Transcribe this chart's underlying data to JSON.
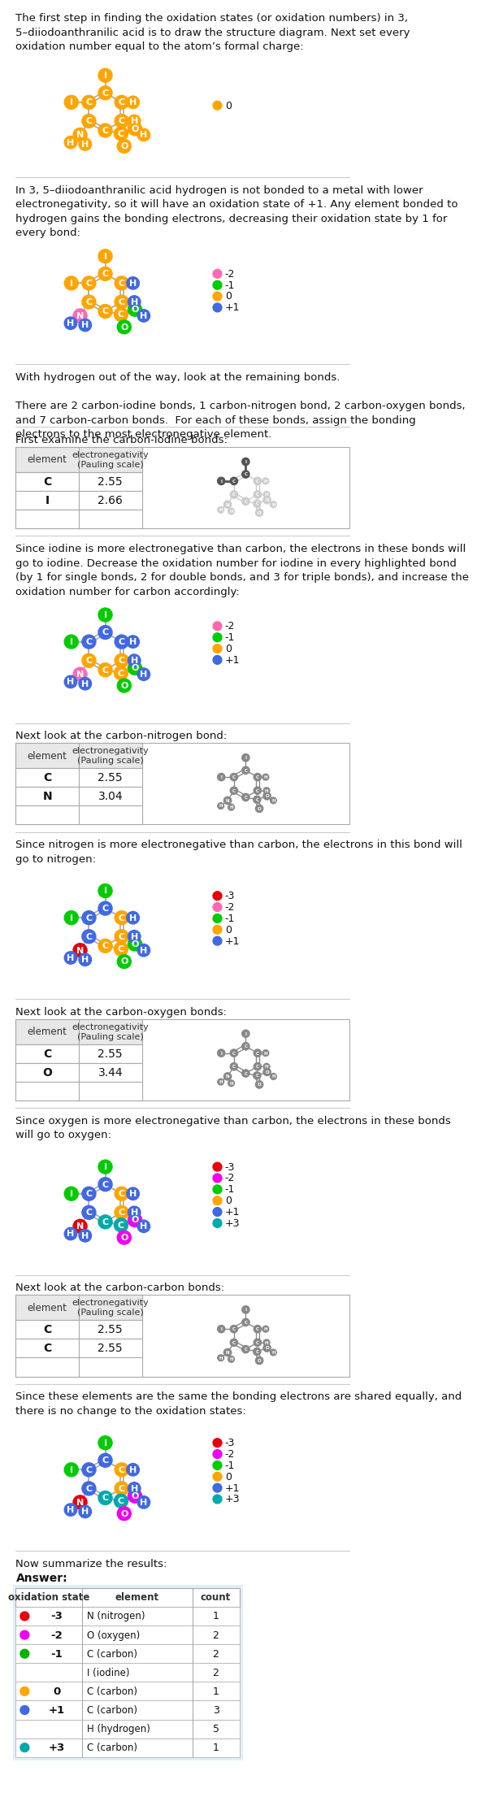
{
  "title_text": "The first step in finding the oxidation states (or oxidation numbers) in 3,\n5–diiodoanthranilic acid is to draw the structure diagram. Next set every\noxidation number equal to the atom’s formal charge:",
  "section_texts": [
    "In 3, 5–diiodoanthranilic acid hydrogen is not bonded to a metal with lower\nelectronegativity, so it will have an oxidation state of +1. Any element bonded to\nhydrogen gains the bonding electrons, decreasing their oxidation state by 1 for\nevery bond:",
    "With hydrogen out of the way, look at the remaining bonds.\n\nThere are 2 carbon-iodine bonds, 1 carbon-nitrogen bond, 2 carbon-oxygen bonds,\nand 7 carbon-carbon bonds.  For each of these bonds, assign the bonding\nelectrons to the most electronegative element.",
    "First examine the carbon-iodine bonds:",
    "Since iodine is more electronegative than carbon, the electrons in these bonds will\ngo to iodine. Decrease the oxidation number for iodine in every highlighted bond\n(by 1 for single bonds, 2 for double bonds, and 3 for triple bonds), and increase the\noxidation number for carbon accordingly:",
    "Next look at the carbon-nitrogen bond:",
    "Since nitrogen is more electronegative than carbon, the electrons in this bond will\ngo to nitrogen:",
    "Next look at the carbon-oxygen bonds:",
    "Since oxygen is more electronegative than carbon, the electrons in these bonds\nwill go to oxygen:",
    "Next look at the carbon-carbon bonds:",
    "Since these elements are the same the bonding electrons are shared equally, and\nthere is no change to the oxidation states:",
    "Now summarize the results:"
  ],
  "answer_label": "Answer:",
  "table_rows": [
    {
      "dot_color": "#e8000d",
      "ox": "-3",
      "element": "N (nitrogen)",
      "count": "1"
    },
    {
      "dot_color": "#f000f0",
      "ox": "-2",
      "element": "O (oxygen)",
      "count": "2"
    },
    {
      "dot_color": "#00b300",
      "ox": "-1",
      "element": "C (carbon)",
      "count": "2"
    },
    {
      "dot_color": null,
      "ox": "",
      "element": "I (iodine)",
      "count": "2"
    },
    {
      "dot_color": "#ffa500",
      "ox": "0",
      "element": "C (carbon)",
      "count": "1"
    },
    {
      "dot_color": "#4169e1",
      "ox": "+1",
      "element": "C (carbon)",
      "count": "3"
    },
    {
      "dot_color": null,
      "ox": "",
      "element": "H (hydrogen)",
      "count": "5"
    },
    {
      "dot_color": "#00aaaa",
      "ox": "+3",
      "element": "C (carbon)",
      "count": "1"
    }
  ],
  "en_tables": [
    [
      [
        "C",
        "2.55"
      ],
      [
        "I",
        "2.66"
      ]
    ],
    [
      [
        "C",
        "2.55"
      ],
      [
        "N",
        "3.04"
      ]
    ],
    [
      [
        "C",
        "2.55"
      ],
      [
        "O",
        "3.44"
      ]
    ],
    [
      [
        "C",
        "2.55"
      ],
      [
        "C",
        "2.55"
      ]
    ]
  ],
  "colors": {
    "orange": "#FFA500",
    "blue": "#4169E1",
    "pink": "#FF69B4",
    "green": "#00CC00",
    "red": "#e8000d",
    "magenta": "#f000f0",
    "teal": "#00aaaa",
    "gray_atom": "#888888",
    "bond_gray": "#999999",
    "bg_light_blue": "#E0F0F8",
    "table_header_bg": "#e8e8e8",
    "sep_line": "#BBBBBB"
  }
}
